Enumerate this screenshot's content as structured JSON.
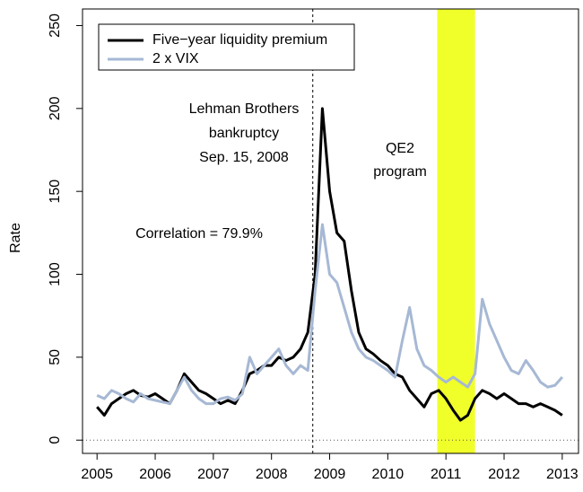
{
  "chart_data": {
    "type": "line",
    "y_label": "Rate",
    "x": [
      2005.0,
      2005.125,
      2005.25,
      2005.375,
      2005.5,
      2005.625,
      2005.75,
      2005.875,
      2006.0,
      2006.125,
      2006.25,
      2006.375,
      2006.5,
      2006.625,
      2006.75,
      2006.875,
      2007.0,
      2007.125,
      2007.25,
      2007.375,
      2007.5,
      2007.625,
      2007.75,
      2007.875,
      2008.0,
      2008.125,
      2008.25,
      2008.375,
      2008.5,
      2008.625,
      2008.75,
      2008.875,
      2009.0,
      2009.125,
      2009.25,
      2009.375,
      2009.5,
      2009.625,
      2009.75,
      2009.875,
      2010.0,
      2010.125,
      2010.25,
      2010.375,
      2010.5,
      2010.625,
      2010.75,
      2010.875,
      2011.0,
      2011.125,
      2011.25,
      2011.375,
      2011.5,
      2011.625,
      2011.75,
      2011.875,
      2012.0,
      2012.125,
      2012.25,
      2012.375,
      2012.5,
      2012.625,
      2012.75,
      2012.875,
      2013.0
    ],
    "series": [
      {
        "name": "Five−year liquidity premium",
        "color": "#000000",
        "values": [
          20,
          15,
          22,
          25,
          28,
          30,
          27,
          26,
          28,
          25,
          22,
          30,
          40,
          35,
          30,
          28,
          25,
          22,
          24,
          22,
          30,
          40,
          42,
          45,
          45,
          50,
          48,
          50,
          55,
          65,
          100,
          200,
          150,
          125,
          120,
          90,
          65,
          55,
          52,
          48,
          45,
          40,
          38,
          30,
          25,
          20,
          28,
          30,
          25,
          18,
          12,
          15,
          25,
          30,
          28,
          25,
          28,
          25,
          22,
          22,
          20,
          22,
          20,
          18,
          15
        ]
      },
      {
        "name": "2 x VIX",
        "color": "#a6b8d4",
        "values": [
          27,
          25,
          30,
          28,
          25,
          23,
          28,
          25,
          24,
          23,
          22,
          30,
          38,
          30,
          25,
          22,
          22,
          25,
          26,
          24,
          28,
          50,
          40,
          45,
          50,
          55,
          45,
          40,
          45,
          42,
          90,
          130,
          100,
          95,
          80,
          65,
          55,
          50,
          48,
          45,
          42,
          38,
          60,
          80,
          55,
          45,
          42,
          38,
          35,
          38,
          35,
          32,
          40,
          85,
          70,
          60,
          50,
          42,
          40,
          48,
          42,
          35,
          32,
          33,
          38
        ]
      }
    ],
    "xlim": [
      2004.75,
      2013.28
    ],
    "ylim": [
      -8,
      260
    ],
    "xticks": [
      2005,
      2006,
      2007,
      2008,
      2009,
      2010,
      2011,
      2012,
      2013
    ],
    "yticks": [
      0,
      50,
      100,
      150,
      200,
      250
    ],
    "event_line": 2008.71,
    "shade": [
      2010.85,
      2011.5
    ],
    "shade_color": "#f0ff2a",
    "zero_line": 0,
    "annotations": [
      "Lehman Brothers",
      "bankruptcy",
      "Sep. 15, 2008",
      "QE2",
      "program",
      "Correlation = 79.9%"
    ],
    "legend": "top-left"
  }
}
